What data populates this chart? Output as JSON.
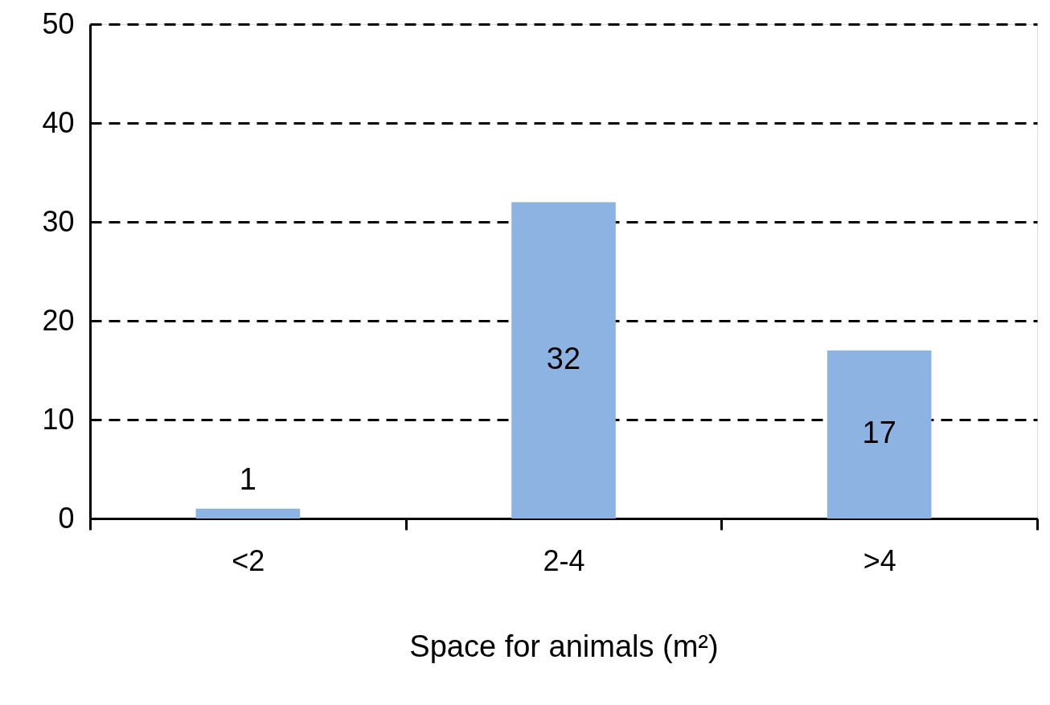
{
  "chart_data": {
    "type": "bar",
    "xlabel": "Space for animals (m²)",
    "categories": [
      "<2",
      "2-4",
      ">4"
    ],
    "values": [
      1,
      32,
      17
    ],
    "color": "#8db3e2",
    "ylim": [
      0,
      50
    ],
    "yticks": [
      0,
      10,
      20,
      30,
      40,
      50
    ],
    "grid": "y",
    "data_labels": true
  }
}
